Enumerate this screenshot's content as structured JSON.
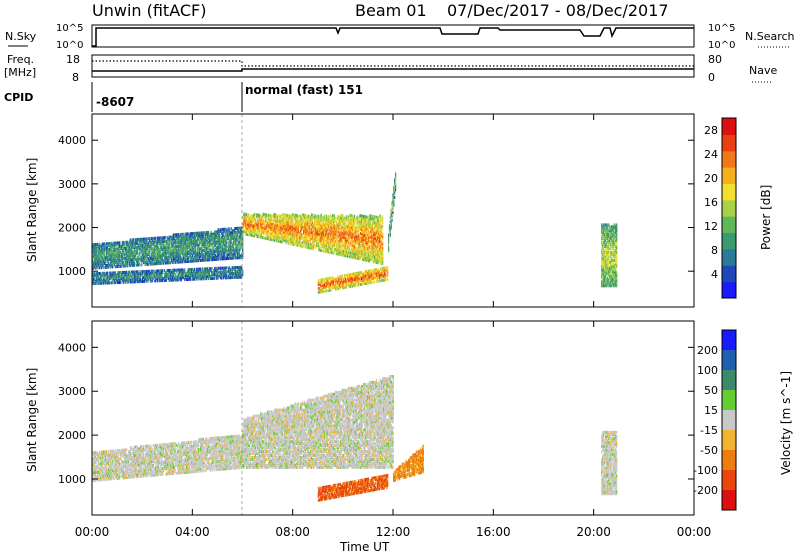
{
  "header": {
    "title": "Unwin (fitACF)",
    "beam_label": "Beam 01",
    "date_range": "07/Dec/2017 - 08/Dec/2017"
  },
  "top_panels": {
    "nsky_label": "N.Sky",
    "nsearch_label": "N.Search",
    "nsky_ticks": [
      "10^5",
      "10^0"
    ],
    "nsearch_ticks": [
      "10^5",
      "10^0"
    ],
    "freq_label_1": "Freq.",
    "freq_label_2": "[MHz]",
    "freq_ticks": [
      "18",
      "8"
    ],
    "nave_label": "Nave",
    "nave_ticks": [
      "80",
      "0"
    ],
    "cpid_label": "CPID",
    "cpid_1": "-8607",
    "cpid_2": "normal (fast) 151"
  },
  "colors": {
    "power_scale": [
      "#1a1aff",
      "#1f47b8",
      "#2a7a9a",
      "#3a9a70",
      "#62b65a",
      "#a8d048",
      "#f0e030",
      "#f5b020",
      "#f07818",
      "#e84010",
      "#dd1010"
    ],
    "velocity_scale": [
      "#1a1aff",
      "#1f5fb0",
      "#3d8a6a",
      "#66cc33",
      "#c8c8c8",
      "#f2b430",
      "#ee7d10",
      "#e8460c",
      "#dd1010"
    ]
  },
  "chart_data": [
    {
      "type": "heatmap",
      "panel": "power",
      "xlabel": "Time UT",
      "ylabel": "Slant Range [km]",
      "x_range_hours": [
        0,
        24
      ],
      "y_range_km": [
        180,
        4600
      ],
      "x_ticks": [
        "00:00",
        "04:00",
        "08:00",
        "12:00",
        "16:00",
        "20:00",
        "00:00"
      ],
      "y_ticks": [
        1000,
        2000,
        3000,
        4000
      ],
      "colorbar": {
        "label": "Power [dB]",
        "ticks": [
          4,
          8,
          12,
          16,
          20,
          24,
          28
        ],
        "range": [
          0,
          30
        ]
      },
      "regions": [
        {
          "t0": 0.0,
          "t1": 6.0,
          "r0_start": 1100,
          "r0_end": 1350,
          "r1_start": 1650,
          "r1_end": 2050,
          "level": 0.35
        },
        {
          "t0": 0.0,
          "t1": 6.0,
          "r0_start": 750,
          "r0_end": 900,
          "r1_start": 1000,
          "r1_end": 1150,
          "level": 0.3
        },
        {
          "t0": 6.0,
          "t1": 11.6,
          "r0_start": 1900,
          "r0_end": 1200,
          "r1_start": 2350,
          "r1_end": 2300,
          "level": 0.78
        },
        {
          "t0": 9.0,
          "t1": 11.8,
          "r0_start": 550,
          "r0_end": 850,
          "r1_start": 850,
          "r1_end": 1150,
          "level": 0.85
        },
        {
          "t0": 11.8,
          "t1": 12.1,
          "r0_start": 1500,
          "r0_end": 3000,
          "r1_start": 1900,
          "r1_end": 3450,
          "level": 0.45
        },
        {
          "t0": 20.3,
          "t1": 20.9,
          "r0_start": 700,
          "r0_end": 700,
          "r1_start": 2100,
          "r1_end": 2100,
          "level": 0.55
        }
      ]
    },
    {
      "type": "heatmap",
      "panel": "velocity",
      "xlabel": "Time UT",
      "ylabel": "Slant Range [km]",
      "x_range_hours": [
        0,
        24
      ],
      "y_range_km": [
        180,
        4600
      ],
      "x_ticks": [
        "00:00",
        "04:00",
        "08:00",
        "12:00",
        "16:00",
        "20:00",
        "00:00"
      ],
      "y_ticks": [
        1000,
        2000,
        3000,
        4000
      ],
      "colorbar": {
        "label": "Velocity [m s^-1]",
        "ticks": [
          200,
          100,
          50,
          15,
          -15,
          -50,
          -100,
          -200
        ],
        "range": [
          -250,
          250
        ]
      },
      "regions": [
        {
          "t0": 0.0,
          "t1": 6.0,
          "r0_start": 1000,
          "r0_end": 1300,
          "r1_start": 1650,
          "r1_end": 2050,
          "vel": 0
        },
        {
          "t0": 6.0,
          "t1": 12.0,
          "r0_start": 1300,
          "r0_end": 1300,
          "r1_start": 2400,
          "r1_end": 3400,
          "vel": 0
        },
        {
          "t0": 9.0,
          "t1": 11.8,
          "r0_start": 550,
          "r0_end": 850,
          "r1_start": 850,
          "r1_end": 1150,
          "vel": -80
        },
        {
          "t0": 12.0,
          "t1": 13.2,
          "r0_start": 1000,
          "r0_end": 1200,
          "r1_start": 1200,
          "r1_end": 1800,
          "vel": -40
        },
        {
          "t0": 20.3,
          "t1": 20.9,
          "r0_start": 700,
          "r0_end": 700,
          "r1_start": 2100,
          "r1_end": 2100,
          "vel": 0
        }
      ]
    }
  ]
}
